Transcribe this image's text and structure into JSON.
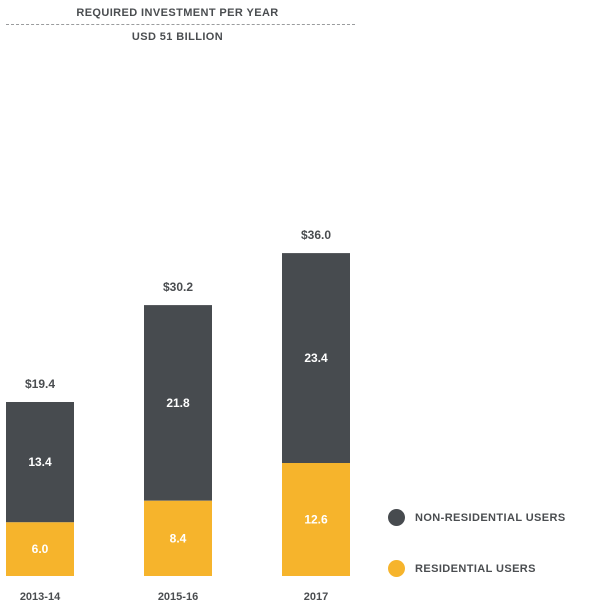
{
  "header": {
    "title": "REQUIRED INVESTMENT PER YEAR",
    "subtitle": "USD 51 BILLION"
  },
  "colors": {
    "non_residential": "#474b4f",
    "residential": "#f6b42c",
    "text": "#4a4d50"
  },
  "legend": {
    "items": [
      {
        "label": "NON-RESIDENTIAL USERS",
        "color": "#474b4f"
      },
      {
        "label": "RESIDENTIAL USERS",
        "color": "#f6b42c"
      }
    ]
  },
  "chart_data": {
    "type": "bar",
    "stacked": true,
    "categories": [
      "2013-14",
      "2015-16",
      "2017"
    ],
    "series": [
      {
        "name": "RESIDENTIAL USERS",
        "values": [
          6.0,
          8.4,
          12.6
        ],
        "labels": [
          "6.0",
          "8.4",
          "12.6"
        ]
      },
      {
        "name": "NON-RESIDENTIAL USERS",
        "values": [
          13.4,
          21.8,
          23.4
        ],
        "labels": [
          "13.4",
          "21.8",
          "23.4"
        ]
      }
    ],
    "totals": [
      "$19.4",
      "$30.2",
      "$36.0"
    ],
    "legend_position": "bottom-right",
    "grid": false
  }
}
